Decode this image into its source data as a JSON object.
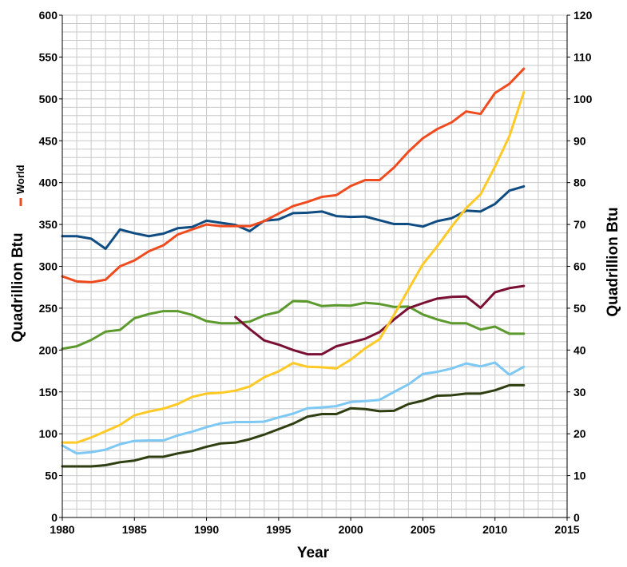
{
  "chart_data": {
    "type": "line",
    "xlabel": "Year",
    "ylabel": "Quadrillion Btu",
    "y2label": "Quadrillion Btu",
    "xlim": [
      1980,
      2015
    ],
    "ylim": [
      0,
      600
    ],
    "y2lim": [
      0,
      120
    ],
    "xticks": [
      "1980",
      "1985",
      "1990",
      "1995",
      "2000",
      "2005",
      "2010",
      "2015"
    ],
    "yticks": [
      "0",
      "50",
      "100",
      "150",
      "200",
      "250",
      "300",
      "350",
      "400",
      "450",
      "500",
      "550",
      "600"
    ],
    "y2ticks": [
      "0",
      "10",
      "20",
      "30",
      "40",
      "50",
      "60",
      "70",
      "80",
      "90",
      "100",
      "110",
      "120"
    ],
    "grid": true,
    "legend": {
      "label": "World",
      "color": "#f04b1e",
      "placement": "left-vertical"
    },
    "series": [
      {
        "name": "World",
        "color": "#f04b1e",
        "axis": "left",
        "x": [
          1980,
          1981,
          1982,
          1983,
          1984,
          1985,
          1986,
          1987,
          1988,
          1989,
          1990,
          1991,
          1992,
          1993,
          1994,
          1995,
          1996,
          1997,
          1998,
          1999,
          2000,
          2001,
          2002,
          2003,
          2004,
          2005,
          2006,
          2007,
          2008,
          2009,
          2010,
          2011,
          2012
        ],
        "y": [
          288,
          282,
          281,
          284,
          300,
          307,
          318,
          325,
          338,
          344,
          350,
          348,
          348,
          348,
          354,
          363,
          372,
          377,
          383,
          385,
          396,
          403,
          403,
          418,
          437,
          453,
          464,
          472,
          485,
          482,
          507,
          518,
          536
        ]
      },
      {
        "color": "#0f4c81",
        "axis": "right",
        "x": [
          1980,
          1981,
          1982,
          1983,
          1984,
          1985,
          1986,
          1987,
          1988,
          1989,
          1990,
          1991,
          1992,
          1993,
          1994,
          1995,
          1996,
          1997,
          1998,
          1999,
          2000,
          2001,
          2002,
          2003,
          2004,
          2005,
          2006,
          2007,
          2008,
          2009,
          2010,
          2011,
          2012
        ],
        "y": [
          67.2,
          67.2,
          66.6,
          64.2,
          68.8,
          67.9,
          67.2,
          67.8,
          69.1,
          69.4,
          70.9,
          70.4,
          69.9,
          68.4,
          70.9,
          71.2,
          72.7,
          72.8,
          73.1,
          72.0,
          71.8,
          71.9,
          71.0,
          70.1,
          70.1,
          69.5,
          70.8,
          71.5,
          73.3,
          73.1,
          74.9,
          78.1,
          79.1
        ]
      },
      {
        "color": "#5d9a2e",
        "axis": "right",
        "x": [
          1980,
          1981,
          1982,
          1983,
          1984,
          1985,
          1986,
          1987,
          1988,
          1989,
          1990,
          1991,
          1992,
          1993,
          1994,
          1995,
          1996,
          1997,
          1998,
          1999,
          2000,
          2001,
          2002,
          2003,
          2004,
          2005,
          2006,
          2007,
          2008,
          2009,
          2010,
          2011,
          2012
        ],
        "y": [
          40.3,
          40.9,
          42.4,
          44.4,
          44.8,
          47.6,
          48.6,
          49.3,
          49.3,
          48.4,
          46.9,
          46.4,
          46.4,
          46.8,
          48.3,
          49.1,
          51.7,
          51.6,
          50.5,
          50.7,
          50.6,
          51.3,
          51.0,
          50.3,
          50.4,
          48.5,
          47.3,
          46.4,
          46.4,
          44.9,
          45.6,
          43.9,
          43.9
        ]
      },
      {
        "color": "#ffc926",
        "axis": "right",
        "x": [
          1980,
          1981,
          1982,
          1983,
          1984,
          1985,
          1986,
          1987,
          1988,
          1989,
          1990,
          1991,
          1992,
          1993,
          1994,
          1995,
          1996,
          1997,
          1998,
          1999,
          2000,
          2001,
          2002,
          2003,
          2004,
          2005,
          2006,
          2007,
          2008,
          2009,
          2010,
          2011,
          2012
        ],
        "y": [
          17.9,
          17.9,
          19.1,
          20.6,
          22.1,
          24.4,
          25.3,
          26.0,
          27.1,
          28.8,
          29.6,
          29.8,
          30.3,
          31.3,
          33.5,
          34.9,
          36.9,
          36.0,
          35.9,
          35.6,
          37.7,
          40.4,
          42.6,
          48.4,
          54.5,
          60.5,
          64.8,
          69.5,
          73.9,
          77.2,
          83.8,
          91.1,
          101.6
        ]
      },
      {
        "color": "#7a0f34",
        "axis": "right",
        "x": [
          1992,
          1993,
          1994,
          1995,
          1996,
          1997,
          1998,
          1999,
          2000,
          2001,
          2002,
          2003,
          2004,
          2005,
          2006,
          2007,
          2008,
          2009,
          2010,
          2011,
          2012
        ],
        "y": [
          47.9,
          45.0,
          42.3,
          41.3,
          40.0,
          39.0,
          39.0,
          40.9,
          41.8,
          42.7,
          44.3,
          47.3,
          50.0,
          51.2,
          52.3,
          52.7,
          52.8,
          50.1,
          53.8,
          54.8,
          55.3
        ]
      },
      {
        "color": "#7ec8f4",
        "axis": "right",
        "x": [
          1980,
          1981,
          1982,
          1983,
          1984,
          1985,
          1986,
          1987,
          1988,
          1989,
          1990,
          1991,
          1992,
          1993,
          1994,
          1995,
          1996,
          1997,
          1998,
          1999,
          2000,
          2001,
          2002,
          2003,
          2004,
          2005,
          2006,
          2007,
          2008,
          2009,
          2010,
          2011,
          2012
        ],
        "y": [
          17.2,
          15.3,
          15.6,
          16.2,
          17.5,
          18.3,
          18.4,
          18.4,
          19.6,
          20.5,
          21.6,
          22.5,
          22.8,
          22.8,
          22.9,
          23.9,
          24.8,
          26.1,
          26.3,
          26.6,
          27.6,
          27.8,
          28.1,
          30.0,
          31.8,
          34.3,
          34.8,
          35.6,
          36.8,
          36.1,
          37.0,
          34.1,
          36.0
        ]
      },
      {
        "color": "#2f3f12",
        "axis": "right",
        "x": [
          1980,
          1981,
          1982,
          1983,
          1984,
          1985,
          1986,
          1987,
          1988,
          1989,
          1990,
          1991,
          1992,
          1993,
          1994,
          1995,
          1996,
          1997,
          1998,
          1999,
          2000,
          2001,
          2002,
          2003,
          2004,
          2005,
          2006,
          2007,
          2008,
          2009,
          2010,
          2011,
          2012
        ],
        "y": [
          12.2,
          12.2,
          12.2,
          12.5,
          13.2,
          13.6,
          14.5,
          14.5,
          15.3,
          15.9,
          16.9,
          17.7,
          17.9,
          18.7,
          19.8,
          21.1,
          22.4,
          24.1,
          24.7,
          24.7,
          26.1,
          25.9,
          25.4,
          25.5,
          27.1,
          27.9,
          29.1,
          29.2,
          29.6,
          29.6,
          30.4,
          31.6,
          31.6
        ]
      }
    ]
  }
}
